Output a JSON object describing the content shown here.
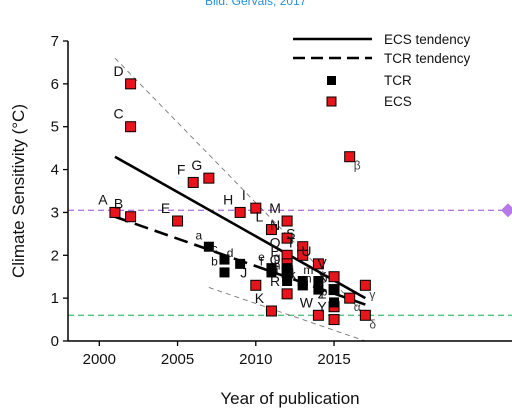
{
  "attribution": "Bild: Gervais, 2017",
  "chart_data": {
    "type": "scatter",
    "xlabel": "Year of publication",
    "ylabel": "Climate Sensitivity (°C)",
    "xlim": [
      1998,
      2017
    ],
    "ylim": [
      0,
      7
    ],
    "xticks": [
      2000,
      2005,
      2010,
      2015
    ],
    "yticks": [
      0,
      1,
      2,
      3,
      4,
      5,
      6,
      7
    ],
    "grid": false,
    "legend_position": "top-right",
    "legend": [
      {
        "label": "ECS tendency",
        "style": "solid-line"
      },
      {
        "label": "TCR tendency",
        "style": "dashed-line"
      },
      {
        "label": "TCR",
        "style": "black-square"
      },
      {
        "label": "ECS",
        "style": "red-square"
      }
    ],
    "series": [
      {
        "name": "ECS",
        "marker_color": "#e8141b",
        "points": [
          {
            "label": "A",
            "x": 2001,
            "y": 3.0
          },
          {
            "label": "B",
            "x": 2002,
            "y": 2.9
          },
          {
            "label": "C",
            "x": 2002,
            "y": 5.0
          },
          {
            "label": "D",
            "x": 2002,
            "y": 6.0
          },
          {
            "label": "E",
            "x": 2005,
            "y": 2.8
          },
          {
            "label": "F",
            "x": 2006,
            "y": 3.7
          },
          {
            "label": "G",
            "x": 2007,
            "y": 3.8
          },
          {
            "label": "H",
            "x": 2009,
            "y": 3.0
          },
          {
            "label": "I",
            "x": 2010,
            "y": 3.1
          },
          {
            "label": "J",
            "x": 2010,
            "y": 1.3
          },
          {
            "label": "K",
            "x": 2011,
            "y": 0.7
          },
          {
            "label": "L",
            "x": 2011,
            "y": 2.6
          },
          {
            "label": "M",
            "x": 2012,
            "y": 2.8
          },
          {
            "label": "N",
            "x": 2012,
            "y": 2.4
          },
          {
            "label": "O",
            "x": 2012,
            "y": 2.0
          },
          {
            "label": "P",
            "x": 2012,
            "y": 1.8
          },
          {
            "label": "Q",
            "x": 2012,
            "y": 1.6
          },
          {
            "label": "R",
            "x": 2012,
            "y": 1.1
          },
          {
            "label": "S",
            "x": 2013,
            "y": 2.2
          },
          {
            "label": "T",
            "x": 2013,
            "y": 2.0
          },
          {
            "label": "U",
            "x": 2014,
            "y": 1.8
          },
          {
            "label": "V",
            "x": 2015,
            "y": 1.5
          },
          {
            "label": "W",
            "x": 2014,
            "y": 0.6
          },
          {
            "label": "X",
            "x": 2015,
            "y": 1.2
          },
          {
            "label": "Y",
            "x": 2015,
            "y": 0.5
          },
          {
            "label": "Z",
            "x": 2015,
            "y": 0.8
          },
          {
            "label": "α",
            "x": 2016,
            "y": 1.0
          },
          {
            "label": "β",
            "x": 2016,
            "y": 4.3
          },
          {
            "label": "γ",
            "x": 2017,
            "y": 1.3
          },
          {
            "label": "δ",
            "x": 2017,
            "y": 0.6
          }
        ]
      },
      {
        "name": "TCR",
        "marker_color": "#000000",
        "points": [
          {
            "label": "a",
            "x": 2007,
            "y": 2.2
          },
          {
            "label": "b",
            "x": 2008,
            "y": 1.6
          },
          {
            "label": "c",
            "x": 2008,
            "y": 1.9
          },
          {
            "label": "d",
            "x": 2009,
            "y": 1.8
          },
          {
            "label": "e",
            "x": 2011,
            "y": 1.7
          },
          {
            "label": "f",
            "x": 2011,
            "y": 1.6
          },
          {
            "label": "g",
            "x": 2012,
            "y": 1.7
          },
          {
            "label": "h",
            "x": 2012,
            "y": 1.5
          },
          {
            "label": "i",
            "x": 2012,
            "y": 1.4
          },
          {
            "label": "j",
            "x": 2013,
            "y": 1.4
          },
          {
            "label": "k",
            "x": 2013,
            "y": 1.3
          },
          {
            "label": "l",
            "x": 2013,
            "y": 1.3
          },
          {
            "label": "m",
            "x": 2014,
            "y": 1.4
          },
          {
            "label": "n",
            "x": 2014,
            "y": 1.2
          },
          {
            "label": "o",
            "x": 2015,
            "y": 1.2
          },
          {
            "label": "p",
            "x": 2015,
            "y": 0.9
          }
        ]
      }
    ],
    "lines": [
      {
        "name": "ECS tendency",
        "style": "solid",
        "from": [
          2001,
          4.3
        ],
        "to": [
          2017,
          1.0
        ]
      },
      {
        "name": "TCR tendency",
        "style": "dashed-bold",
        "from": [
          2001,
          2.9
        ],
        "to": [
          2017,
          0.85
        ]
      },
      {
        "name": "ECS upper",
        "style": "dashed-thin",
        "from": [
          2001,
          6.6
        ],
        "to": [
          2017,
          0.6
        ]
      },
      {
        "name": "TCR lower",
        "style": "dashed-thin",
        "from": [
          2007,
          1.25
        ],
        "to": [
          2017,
          0.0
        ]
      }
    ],
    "reference_lines": [
      {
        "y": 3.05,
        "color": "#b57ae8",
        "style": "dashed",
        "marker": "diamond"
      },
      {
        "y": 0.6,
        "color": "#4fc77d",
        "style": "dashed"
      }
    ]
  }
}
